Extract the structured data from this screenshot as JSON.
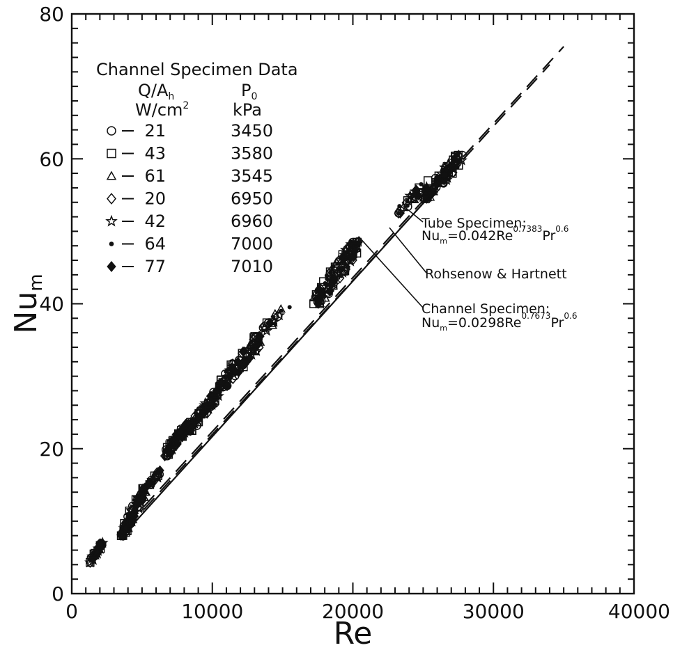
{
  "chart_data": {
    "type": "scatter",
    "title": "",
    "xlabel": "Re",
    "ylabel": "Nu",
    "ylabel_sub": "m",
    "xlim": [
      0,
      40000
    ],
    "ylim": [
      0,
      80
    ],
    "x_ticks": [
      0,
      10000,
      20000,
      30000,
      40000
    ],
    "y_ticks": [
      0,
      20,
      40,
      60,
      80
    ],
    "x_tick_labels": [
      "0",
      "10000",
      "20000",
      "30000",
      "40000"
    ],
    "y_tick_labels": [
      "0",
      "20",
      "40",
      "60",
      "80"
    ],
    "grid": false,
    "legend": {
      "placement": "top-left",
      "title": "Channel Specimen Data",
      "col1_header_line1": "Q/A",
      "col1_header_sub": "h",
      "col1_header_line2": "W/cm",
      "col1_header_sup": "2",
      "col2_header_line1": "P",
      "col2_header_sub": "0",
      "col2_header_line2": "kPa",
      "entries": [
        {
          "marker": "circle",
          "q": "21",
          "p": "3450"
        },
        {
          "marker": "square",
          "q": "43",
          "p": "3580"
        },
        {
          "marker": "triangle",
          "q": "61",
          "p": "3545"
        },
        {
          "marker": "diamond",
          "q": "20",
          "p": "6950"
        },
        {
          "marker": "star",
          "q": "42",
          "p": "6960"
        },
        {
          "marker": "dot",
          "q": "64",
          "p": "7000"
        },
        {
          "marker": "filled-diamond",
          "q": "77",
          "p": "7010"
        }
      ]
    },
    "lines": [
      {
        "name": "Tube Specimen",
        "style": "dashed",
        "x": [
          4000,
          35000
        ],
        "y": [
          9.6,
          75.5
        ]
      },
      {
        "name": "Rohsenow & Hartnett",
        "style": "dashed",
        "x": [
          4000,
          34000
        ],
        "y": [
          9.2,
          73.0
        ]
      },
      {
        "name": "Channel Specimen",
        "style": "solid",
        "x": [
          4000,
          26000
        ],
        "y": [
          8.8,
          56.0
        ]
      }
    ],
    "annotations": [
      {
        "name": "Tube Specimen",
        "line1": "Tube Specimen:",
        "eq_prefix": "Nu",
        "eq_sub": "m",
        "eq_mid": "=0.042Re",
        "eq_sup": "0.7383",
        "eq_pr": "Pr",
        "eq_pr_sup": "0.6",
        "target_x": 23600,
        "target_y": 53.5
      },
      {
        "name": "Rohsenow & Hartnett",
        "line1": "Rohsenow & Hartnett",
        "target_x": 22600,
        "target_y": 50.5
      },
      {
        "name": "Channel Specimen",
        "line1": "Channel Specimen:",
        "eq_prefix": "Nu",
        "eq_sub": "m",
        "eq_mid": "=0.0298Re",
        "eq_sup": "0.7673",
        "eq_pr": "Pr",
        "eq_pr_sup": "0.6",
        "target_x": 20400,
        "target_y": 49.3
      }
    ],
    "clusters": [
      {
        "x": [
          1300,
          2200
        ],
        "y": [
          4.3,
          7.0
        ],
        "n": 45
      },
      {
        "x": [
          3500,
          5200
        ],
        "y": [
          8.0,
          14.5
        ],
        "n": 110
      },
      {
        "x": [
          5200,
          6300
        ],
        "y": [
          14.0,
          17.0
        ],
        "n": 25
      },
      {
        "x": [
          6600,
          8300
        ],
        "y": [
          19.0,
          23.5
        ],
        "n": 80
      },
      {
        "x": [
          8300,
          10500
        ],
        "y": [
          22.5,
          28.0
        ],
        "n": 90
      },
      {
        "x": [
          10500,
          13500
        ],
        "y": [
          28.5,
          35.5
        ],
        "n": 90
      },
      {
        "x": [
          13500,
          15500
        ],
        "y": [
          36.0,
          40.0
        ],
        "n": 20
      },
      {
        "x": [
          17200,
          20400
        ],
        "y": [
          40.0,
          48.5
        ],
        "n": 120
      },
      {
        "x": [
          23200,
          25500
        ],
        "y": [
          52.5,
          57.0
        ],
        "n": 30
      },
      {
        "x": [
          25000,
          27800
        ],
        "y": [
          54.5,
          60.5
        ],
        "n": 100
      }
    ]
  }
}
